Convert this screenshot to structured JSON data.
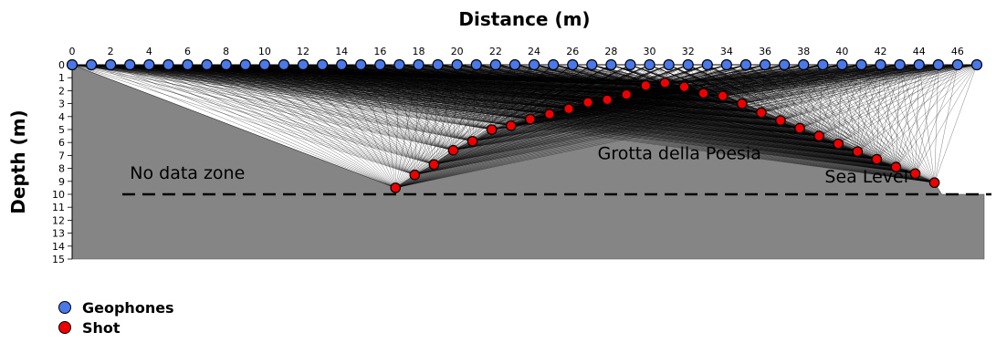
{
  "chart_data": {
    "type": "scatter",
    "title": "",
    "xlabel": "Distance (m)",
    "ylabel": "Depth (m)",
    "xlim": [
      0,
      47
    ],
    "ylim": [
      0,
      15
    ],
    "x_ticks": [
      0,
      2,
      4,
      6,
      8,
      10,
      12,
      14,
      16,
      18,
      20,
      22,
      24,
      26,
      28,
      30,
      32,
      34,
      36,
      38,
      40,
      42,
      44,
      46
    ],
    "y_ticks": [
      0,
      1,
      2,
      3,
      4,
      5,
      6,
      7,
      8,
      9,
      10,
      11,
      12,
      13,
      14,
      15
    ],
    "grid": false,
    "legend_position": "bottom-left",
    "colors": {
      "geophones": "#4a78e8",
      "shot": "#ee0000",
      "section": "#858585",
      "rays": "#000000"
    },
    "series": [
      {
        "name": "Geophones",
        "x": [
          0,
          1,
          2,
          3,
          4,
          5,
          6,
          7,
          8,
          9,
          10,
          11,
          12,
          13,
          14,
          15,
          16,
          17,
          18,
          19,
          20,
          21,
          22,
          23,
          24,
          25,
          26,
          27,
          28,
          29,
          30,
          31,
          32,
          33,
          34,
          35,
          36,
          37,
          38,
          39,
          40,
          41,
          42,
          43,
          44,
          45,
          46,
          47
        ],
        "y": [
          0,
          0,
          0,
          0,
          0,
          0,
          0,
          0,
          0,
          0,
          0,
          0,
          0,
          0,
          0,
          0,
          0,
          0,
          0,
          0,
          0,
          0,
          0,
          0,
          0,
          0,
          0,
          0,
          0,
          0,
          0,
          0,
          0,
          0,
          0,
          0,
          0,
          0,
          0,
          0,
          0,
          0,
          0,
          0,
          0,
          0,
          0,
          0
        ]
      },
      {
        "name": "Shot",
        "x": [
          16.8,
          17.8,
          18.8,
          19.8,
          20.8,
          21.8,
          22.8,
          23.8,
          24.8,
          25.8,
          26.8,
          27.8,
          28.8,
          29.8,
          30.8,
          31.8,
          32.8,
          33.8,
          34.8,
          35.8,
          36.8,
          37.8,
          38.8,
          39.8,
          40.8,
          41.8,
          42.8,
          43.8,
          44.8
        ],
        "y": [
          9.5,
          8.5,
          7.7,
          6.6,
          5.9,
          5.0,
          4.7,
          4.2,
          3.8,
          3.4,
          2.9,
          2.7,
          2.3,
          1.6,
          1.4,
          1.7,
          2.2,
          2.4,
          3.0,
          3.7,
          4.3,
          4.9,
          5.5,
          6.1,
          6.7,
          7.3,
          7.9,
          8.4,
          9.1
        ]
      }
    ],
    "annotations": [
      {
        "text": "No data zone",
        "x": 3,
        "y": 8.8
      },
      {
        "text": "Grotta della Poesia",
        "x": 27.3,
        "y": 7.3
      },
      {
        "text": "Sea Level",
        "x": 39.1,
        "y": 9.1
      }
    ],
    "reference_lines": [
      {
        "orientation": "horizontal",
        "y": 10,
        "style": "dashed"
      }
    ],
    "section_outline": {
      "top": [
        [
          0,
          0
        ],
        [
          47,
          0
        ]
      ],
      "bottom": [
        [
          0,
          15
        ],
        [
          47,
          15
        ]
      ]
    },
    "legend": [
      {
        "label": "Geophones",
        "color": "#4a78e8"
      },
      {
        "label": "Shot",
        "color": "#ee0000"
      }
    ]
  }
}
